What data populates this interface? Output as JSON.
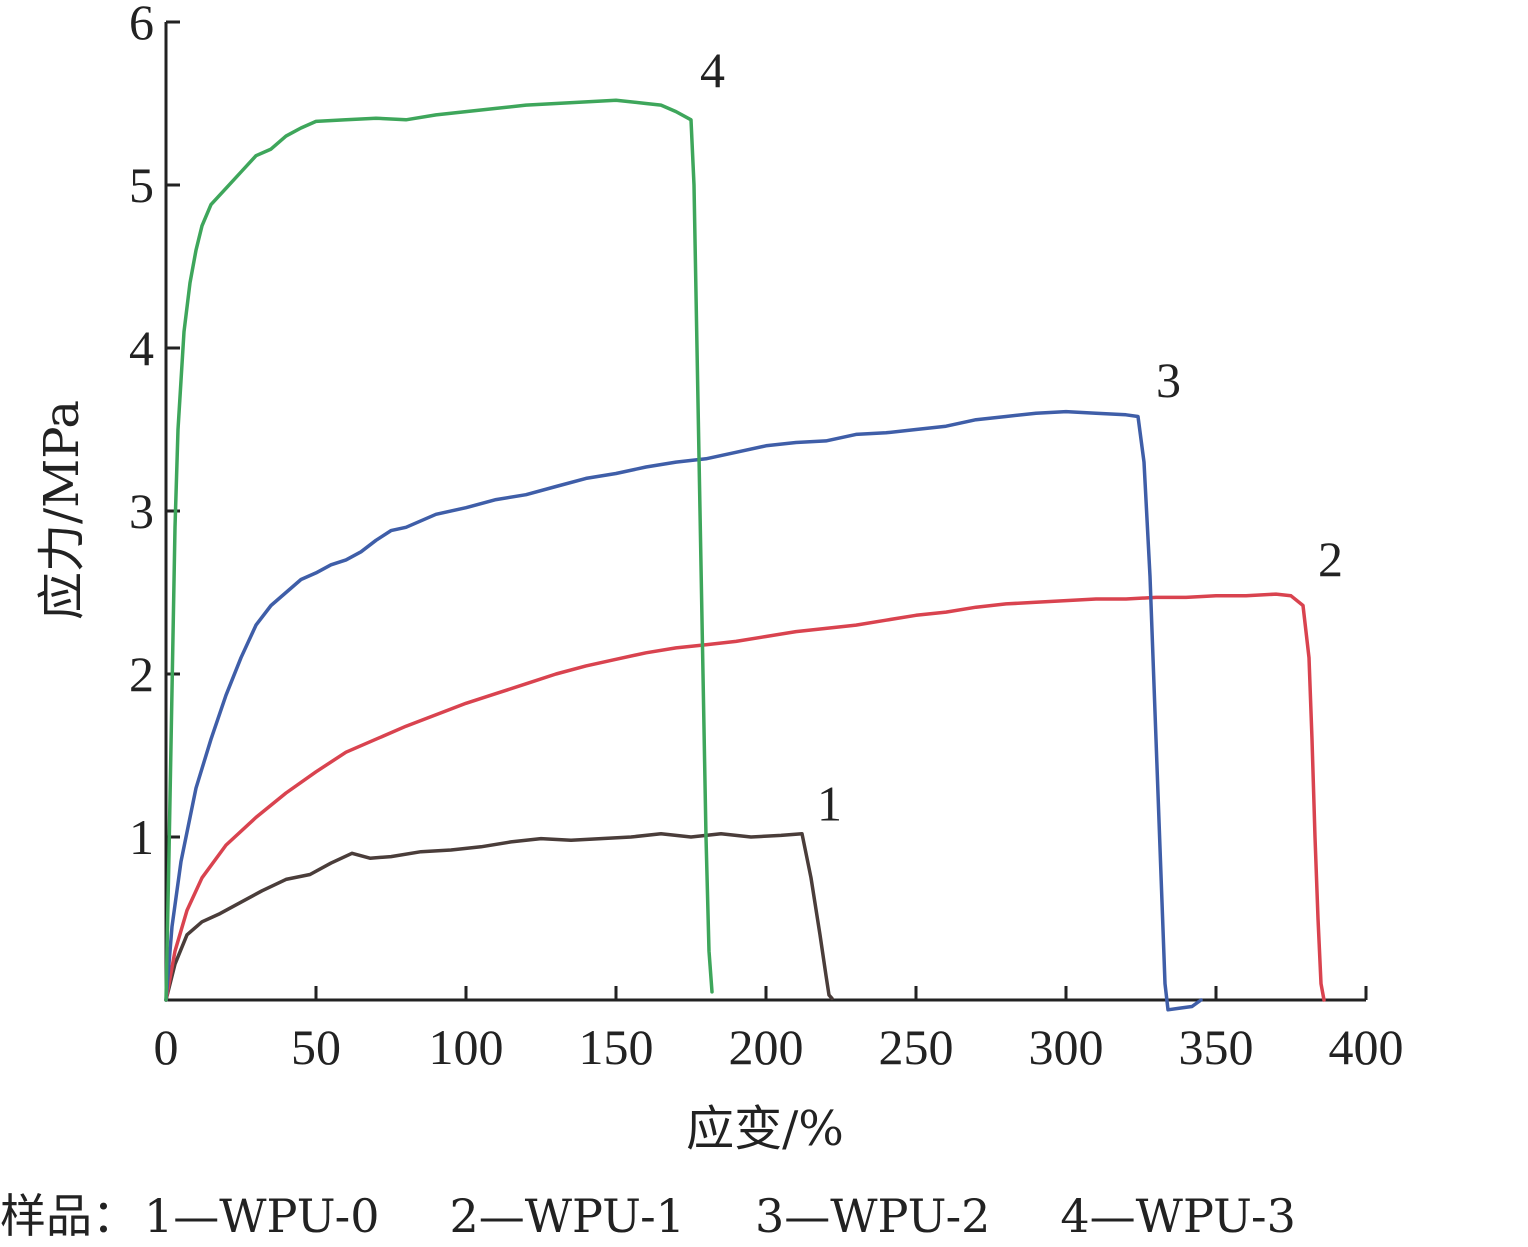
{
  "chart_data": {
    "type": "line",
    "xlabel": "应变/%",
    "ylabel": "应力/MPa",
    "xlim": [
      0,
      400
    ],
    "ylim": [
      0,
      6
    ],
    "xticks": [
      0,
      50,
      100,
      150,
      200,
      250,
      300,
      350,
      400
    ],
    "yticks": [
      1,
      2,
      3,
      4,
      5,
      6
    ],
    "grid": false,
    "series": [
      {
        "name": "1",
        "color": "#4a3d3a",
        "label_at": [
          217,
          1.1
        ],
        "points": [
          [
            0,
            0
          ],
          [
            3,
            0.22
          ],
          [
            7,
            0.4
          ],
          [
            12,
            0.48
          ],
          [
            18,
            0.53
          ],
          [
            25,
            0.6
          ],
          [
            32,
            0.67
          ],
          [
            40,
            0.74
          ],
          [
            48,
            0.77
          ],
          [
            55,
            0.84
          ],
          [
            62,
            0.9
          ],
          [
            68,
            0.87
          ],
          [
            75,
            0.88
          ],
          [
            85,
            0.91
          ],
          [
            95,
            0.92
          ],
          [
            105,
            0.94
          ],
          [
            115,
            0.97
          ],
          [
            125,
            0.99
          ],
          [
            135,
            0.98
          ],
          [
            145,
            0.99
          ],
          [
            155,
            1.0
          ],
          [
            165,
            1.02
          ],
          [
            175,
            1.0
          ],
          [
            185,
            1.02
          ],
          [
            195,
            1.0
          ],
          [
            205,
            1.01
          ],
          [
            212,
            1.02
          ],
          [
            215,
            0.75
          ],
          [
            218,
            0.4
          ],
          [
            220,
            0.15
          ],
          [
            221,
            0.03
          ],
          [
            222,
            0.01
          ]
        ]
      },
      {
        "name": "2",
        "color": "#d9434f",
        "label_at": [
          384,
          2.6
        ],
        "points": [
          [
            0,
            0
          ],
          [
            3,
            0.3
          ],
          [
            7,
            0.55
          ],
          [
            12,
            0.75
          ],
          [
            20,
            0.95
          ],
          [
            30,
            1.12
          ],
          [
            40,
            1.27
          ],
          [
            50,
            1.4
          ],
          [
            60,
            1.52
          ],
          [
            70,
            1.6
          ],
          [
            80,
            1.68
          ],
          [
            90,
            1.75
          ],
          [
            100,
            1.82
          ],
          [
            110,
            1.88
          ],
          [
            120,
            1.94
          ],
          [
            130,
            2.0
          ],
          [
            140,
            2.05
          ],
          [
            150,
            2.09
          ],
          [
            160,
            2.13
          ],
          [
            170,
            2.16
          ],
          [
            180,
            2.18
          ],
          [
            190,
            2.2
          ],
          [
            200,
            2.23
          ],
          [
            210,
            2.26
          ],
          [
            220,
            2.28
          ],
          [
            230,
            2.3
          ],
          [
            240,
            2.33
          ],
          [
            250,
            2.36
          ],
          [
            260,
            2.38
          ],
          [
            270,
            2.41
          ],
          [
            280,
            2.43
          ],
          [
            290,
            2.44
          ],
          [
            300,
            2.45
          ],
          [
            310,
            2.46
          ],
          [
            320,
            2.46
          ],
          [
            330,
            2.47
          ],
          [
            340,
            2.47
          ],
          [
            350,
            2.48
          ],
          [
            360,
            2.48
          ],
          [
            370,
            2.49
          ],
          [
            375,
            2.48
          ],
          [
            379,
            2.42
          ],
          [
            381,
            2.1
          ],
          [
            382,
            1.6
          ],
          [
            383,
            1.0
          ],
          [
            384,
            0.5
          ],
          [
            385,
            0.1
          ],
          [
            386,
            0.0
          ]
        ]
      },
      {
        "name": "3",
        "color": "#3f5ea8",
        "label_at": [
          330,
          3.7
        ],
        "points": [
          [
            0,
            0
          ],
          [
            2,
            0.45
          ],
          [
            5,
            0.85
          ],
          [
            10,
            1.3
          ],
          [
            15,
            1.6
          ],
          [
            20,
            1.87
          ],
          [
            25,
            2.1
          ],
          [
            30,
            2.3
          ],
          [
            35,
            2.42
          ],
          [
            40,
            2.5
          ],
          [
            45,
            2.58
          ],
          [
            50,
            2.62
          ],
          [
            55,
            2.67
          ],
          [
            60,
            2.7
          ],
          [
            65,
            2.75
          ],
          [
            70,
            2.82
          ],
          [
            75,
            2.88
          ],
          [
            80,
            2.9
          ],
          [
            90,
            2.98
          ],
          [
            100,
            3.02
          ],
          [
            110,
            3.07
          ],
          [
            120,
            3.1
          ],
          [
            130,
            3.15
          ],
          [
            140,
            3.2
          ],
          [
            150,
            3.23
          ],
          [
            160,
            3.27
          ],
          [
            170,
            3.3
          ],
          [
            180,
            3.32
          ],
          [
            190,
            3.36
          ],
          [
            200,
            3.4
          ],
          [
            210,
            3.42
          ],
          [
            220,
            3.43
          ],
          [
            230,
            3.47
          ],
          [
            240,
            3.48
          ],
          [
            250,
            3.5
          ],
          [
            260,
            3.52
          ],
          [
            270,
            3.56
          ],
          [
            280,
            3.58
          ],
          [
            290,
            3.6
          ],
          [
            300,
            3.61
          ],
          [
            310,
            3.6
          ],
          [
            320,
            3.59
          ],
          [
            324,
            3.58
          ],
          [
            326,
            3.3
          ],
          [
            328,
            2.6
          ],
          [
            330,
            1.6
          ],
          [
            332,
            0.6
          ],
          [
            333,
            0.1
          ],
          [
            334,
            -0.06
          ],
          [
            338,
            -0.05
          ],
          [
            342,
            -0.04
          ],
          [
            345,
            0.0
          ]
        ]
      },
      {
        "name": "4",
        "color": "#3ea65b",
        "label_at": [
          178,
          5.6
        ],
        "points": [
          [
            0,
            0
          ],
          [
            1,
            0.9
          ],
          [
            2,
            1.9
          ],
          [
            3,
            2.9
          ],
          [
            4,
            3.5
          ],
          [
            6,
            4.1
          ],
          [
            8,
            4.4
          ],
          [
            10,
            4.6
          ],
          [
            12,
            4.75
          ],
          [
            15,
            4.88
          ],
          [
            20,
            4.98
          ],
          [
            25,
            5.08
          ],
          [
            30,
            5.18
          ],
          [
            35,
            5.22
          ],
          [
            40,
            5.3
          ],
          [
            45,
            5.35
          ],
          [
            50,
            5.39
          ],
          [
            60,
            5.4
          ],
          [
            70,
            5.41
          ],
          [
            80,
            5.4
          ],
          [
            90,
            5.43
          ],
          [
            100,
            5.45
          ],
          [
            110,
            5.47
          ],
          [
            120,
            5.49
          ],
          [
            130,
            5.5
          ],
          [
            140,
            5.51
          ],
          [
            150,
            5.52
          ],
          [
            160,
            5.5
          ],
          [
            165,
            5.49
          ],
          [
            170,
            5.45
          ],
          [
            175,
            5.4
          ],
          [
            176,
            5.0
          ],
          [
            177,
            4.0
          ],
          [
            178,
            3.0
          ],
          [
            179,
            2.0
          ],
          [
            180,
            1.0
          ],
          [
            181,
            0.3
          ],
          [
            182,
            0.05
          ]
        ]
      }
    ]
  },
  "caption": {
    "prefix": "样品：",
    "items": [
      "1—WPU-0",
      "2—WPU-1",
      "3—WPU-2",
      "4—WPU-3"
    ]
  }
}
